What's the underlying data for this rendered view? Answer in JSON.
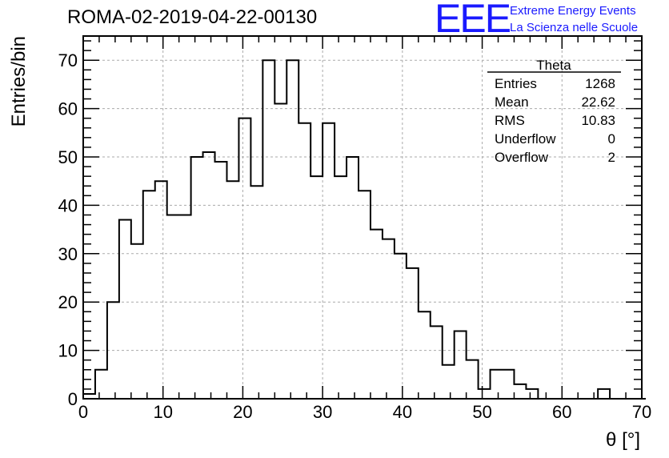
{
  "header": {
    "run_title": "ROMA-02-2019-04-22-00130",
    "logo_text": "EEE",
    "org_line1": "Extreme Energy Events",
    "org_line2": "La Scienza nelle Scuole"
  },
  "stats_box": {
    "title": "Theta",
    "rows": [
      {
        "label": "Entries",
        "value": "1268"
      },
      {
        "label": "Mean",
        "value": "22.62"
      },
      {
        "label": "RMS",
        "value": "10.83"
      },
      {
        "label": "Underflow",
        "value": "0"
      },
      {
        "label": "Overflow",
        "value": "2"
      }
    ]
  },
  "colors": {
    "line": "#000000",
    "grid": "#aaaaaa",
    "brand": "#1a1aff"
  },
  "chart_data": {
    "type": "bar",
    "histogram": true,
    "xlabel": "θ [°]",
    "ylabel": "Entries/bin",
    "xlim": [
      0,
      70
    ],
    "ylim": [
      0,
      75
    ],
    "xticks": [
      0,
      10,
      20,
      30,
      40,
      50,
      60,
      70
    ],
    "yticks": [
      0,
      10,
      20,
      30,
      40,
      50,
      60,
      70
    ],
    "grid": true,
    "bin_width": 1.5,
    "bin_start": 0,
    "values": [
      1,
      6,
      20,
      37,
      32,
      43,
      45,
      38,
      38,
      50,
      51,
      49,
      45,
      58,
      44,
      70,
      61,
      70,
      57,
      46,
      57,
      46,
      50,
      43,
      35,
      33,
      30,
      27,
      18,
      15,
      7,
      14,
      8,
      2,
      6,
      6,
      3,
      2,
      0,
      0,
      0,
      0,
      0,
      2,
      0,
      0,
      0
    ]
  }
}
